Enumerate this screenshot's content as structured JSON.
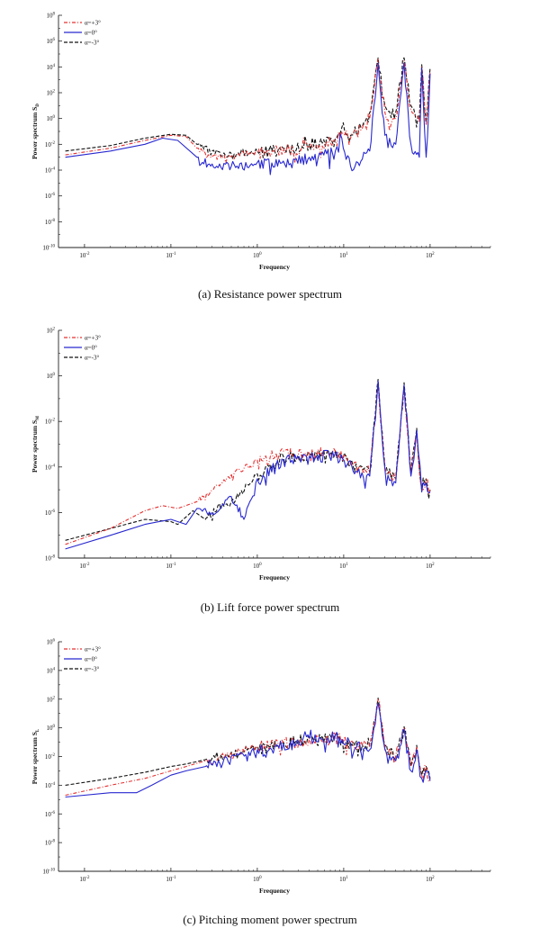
{
  "chart_data": [
    {
      "type": "line",
      "xscale": "log",
      "yscale": "log",
      "xlim": [
        0.005,
        500
      ],
      "ylim": [
        1e-10,
        100000000.0
      ],
      "xticks": [
        "10^-2",
        "10^-1",
        "10^0",
        "10^1",
        "10^2"
      ],
      "yticks": [
        "10^-10",
        "10^-8",
        "10^-6",
        "10^-4",
        "10^-2",
        "10^0",
        "10^2",
        "10^4",
        "10^6",
        "10^8"
      ],
      "xlabel": "Frequency",
      "ylabel": "Power spectrum S_D",
      "legend_position": "top-left",
      "series": [
        {
          "name": "α=+3°",
          "color": "#e53030",
          "style": "dash-dot",
          "x": [
            0.006,
            0.02,
            0.05,
            0.1,
            0.15,
            0.2,
            0.25,
            0.4,
            0.7,
            1,
            2,
            4,
            8,
            9.5,
            12,
            20,
            25,
            30,
            40,
            50,
            60,
            75,
            80,
            90,
            100
          ],
          "y": [
            0.0015,
            0.005,
            0.02,
            0.05,
            0.04,
            0.005,
            0.002,
            0.001,
            0.002,
            0.003,
            0.005,
            0.008,
            0.02,
            0.1,
            0.03,
            1,
            40000,
            3,
            1,
            30000,
            5,
            0.5,
            10000,
            0.3,
            5000
          ]
        },
        {
          "name": "α=0°",
          "color": "#2828d0",
          "style": "solid",
          "x": [
            0.006,
            0.02,
            0.05,
            0.08,
            0.12,
            0.2,
            0.3,
            0.5,
            1,
            2,
            4,
            8,
            9.5,
            12,
            20,
            25,
            30,
            40,
            50,
            60,
            75,
            80,
            90,
            100
          ],
          "y": [
            0.001,
            0.003,
            0.01,
            0.03,
            0.02,
            0.001,
            0.0003,
            0.0002,
            0.0004,
            0.0005,
            0.001,
            0.003,
            0.03,
            0.0002,
            0.003,
            20000,
            0.05,
            0.01,
            20000,
            0.01,
            0.001,
            8000,
            0.001,
            3000
          ]
        },
        {
          "name": "α=-3°",
          "color": "#111111",
          "style": "dashed",
          "x": [
            0.006,
            0.02,
            0.05,
            0.1,
            0.15,
            0.2,
            0.3,
            0.5,
            1,
            2,
            4,
            8,
            9.5,
            12,
            20,
            25,
            30,
            40,
            50,
            60,
            75,
            80,
            90,
            100
          ],
          "y": [
            0.003,
            0.008,
            0.03,
            0.06,
            0.05,
            0.01,
            0.003,
            0.002,
            0.003,
            0.005,
            0.01,
            0.03,
            0.2,
            0.05,
            3,
            50000,
            10,
            3,
            50000,
            10,
            1,
            15000,
            0.5,
            8000
          ]
        }
      ]
    },
    {
      "type": "line",
      "xscale": "log",
      "yscale": "log",
      "xlim": [
        0.005,
        500
      ],
      "ylim": [
        1e-08,
        100
      ],
      "xticks": [
        "10^-2",
        "10^-1",
        "10^0",
        "10^1",
        "10^2"
      ],
      "yticks": [
        "10^-8",
        "10^-6",
        "10^-4",
        "10^-2",
        "10^0",
        "10^2"
      ],
      "xlabel": "Frequency",
      "ylabel": "Power spectrum S_M",
      "legend_position": "top-left",
      "series": [
        {
          "name": "α=+3°",
          "color": "#e53030",
          "style": "dash-dot",
          "x": [
            0.006,
            0.02,
            0.05,
            0.08,
            0.12,
            0.2,
            0.3,
            0.5,
            1,
            2,
            4,
            8,
            15,
            20,
            25,
            30,
            40,
            50,
            60,
            70,
            80,
            90,
            100
          ],
          "y": [
            4e-08,
            2e-07,
            1.2e-06,
            2e-06,
            1.5e-06,
            3e-06,
            1e-05,
            5e-05,
            0.0002,
            0.0005,
            0.0004,
            0.0005,
            0.0001,
            5e-05,
            0.5,
            0.0001,
            3e-05,
            0.3,
            5e-05,
            0.003,
            1e-05,
            3e-05,
            1e-05
          ]
        },
        {
          "name": "α=0°",
          "color": "#2828d0",
          "style": "solid",
          "x": [
            0.006,
            0.02,
            0.05,
            0.1,
            0.15,
            0.2,
            0.3,
            0.5,
            0.7,
            1,
            2,
            4,
            8,
            15,
            20,
            25,
            30,
            40,
            50,
            60,
            70,
            80,
            90,
            100
          ],
          "y": [
            2.5e-08,
            1e-07,
            3e-07,
            5e-07,
            3e-07,
            1.5e-06,
            1e-06,
            5e-06,
            5e-07,
            3e-05,
            0.0002,
            0.0003,
            0.0004,
            8e-05,
            4e-05,
            0.6,
            8e-05,
            2e-05,
            0.4,
            4e-05,
            0.004,
            8e-06,
            2e-05,
            8e-06
          ]
        },
        {
          "name": "α=-3°",
          "color": "#111111",
          "style": "dashed",
          "x": [
            0.006,
            0.02,
            0.05,
            0.1,
            0.12,
            0.18,
            0.25,
            0.35,
            0.5,
            1,
            2,
            4,
            8,
            15,
            20,
            25,
            30,
            40,
            50,
            60,
            70,
            80,
            90,
            100
          ],
          "y": [
            6e-08,
            2e-07,
            5e-07,
            4e-07,
            3e-07,
            1.2e-06,
            5e-07,
            2e-06,
            3e-06,
            5e-05,
            0.0003,
            0.0004,
            0.0005,
            0.0001,
            6e-05,
            0.7,
            0.0001,
            3e-05,
            0.5,
            6e-05,
            0.005,
            1e-05,
            3e-05,
            1e-05
          ]
        }
      ]
    },
    {
      "type": "line",
      "xscale": "log",
      "yscale": "log",
      "xlim": [
        0.005,
        500
      ],
      "ylim": [
        1e-10,
        1000000.0
      ],
      "xticks": [
        "10^-2",
        "10^-1",
        "10^0",
        "10^1",
        "10^2"
      ],
      "yticks": [
        "10^-10",
        "10^-8",
        "10^-6",
        "10^-4",
        "10^-2",
        "10^0",
        "10^2",
        "10^4",
        "10^6"
      ],
      "xlabel": "Frequency",
      "ylabel": "Power spectrum S_L",
      "legend_position": "top-left",
      "series": [
        {
          "name": "α=+3°",
          "color": "#e53030",
          "style": "dash-dot",
          "x": [
            0.006,
            0.02,
            0.05,
            0.1,
            0.15,
            0.25,
            0.5,
            1,
            2,
            4,
            8,
            12,
            20,
            25,
            30,
            40,
            50,
            60,
            70,
            80,
            90,
            100
          ],
          "y": [
            2e-05,
            0.0001,
            0.0003,
            0.001,
            0.002,
            0.005,
            0.02,
            0.05,
            0.1,
            0.2,
            0.3,
            0.1,
            0.05,
            100,
            0.05,
            0.01,
            1,
            0.002,
            0.05,
            0.0005,
            0.002,
            0.0003
          ]
        },
        {
          "name": "α=0°",
          "color": "#2828d0",
          "style": "solid",
          "x": [
            0.006,
            0.02,
            0.04,
            0.06,
            0.1,
            0.15,
            0.25,
            0.5,
            1,
            2,
            4,
            8,
            12,
            20,
            25,
            30,
            40,
            50,
            60,
            70,
            80,
            90,
            100
          ],
          "y": [
            1.5e-05,
            3e-05,
            3e-05,
            0.0001,
            0.0005,
            0.001,
            0.002,
            0.01,
            0.03,
            0.08,
            0.2,
            0.3,
            0.08,
            0.03,
            50,
            0.03,
            0.005,
            0.8,
            0.001,
            0.03,
            0.0003,
            0.001,
            0.0002
          ]
        },
        {
          "name": "α=-3°",
          "color": "#111111",
          "style": "dashed",
          "x": [
            0.006,
            0.02,
            0.05,
            0.1,
            0.15,
            0.25,
            0.5,
            1,
            2,
            4,
            8,
            12,
            20,
            25,
            30,
            40,
            50,
            60,
            70,
            80,
            90,
            100
          ],
          "y": [
            0.0001,
            0.0003,
            0.0008,
            0.002,
            0.003,
            0.006,
            0.02,
            0.05,
            0.1,
            0.2,
            0.3,
            0.1,
            0.05,
            120,
            0.05,
            0.01,
            1.2,
            0.002,
            0.06,
            0.0005,
            0.002,
            0.0003
          ]
        }
      ]
    }
  ],
  "captions": [
    "(a) Resistance power spectrum",
    "(b) Lift force power spectrum",
    "(c) Pitching moment power spectrum"
  ]
}
